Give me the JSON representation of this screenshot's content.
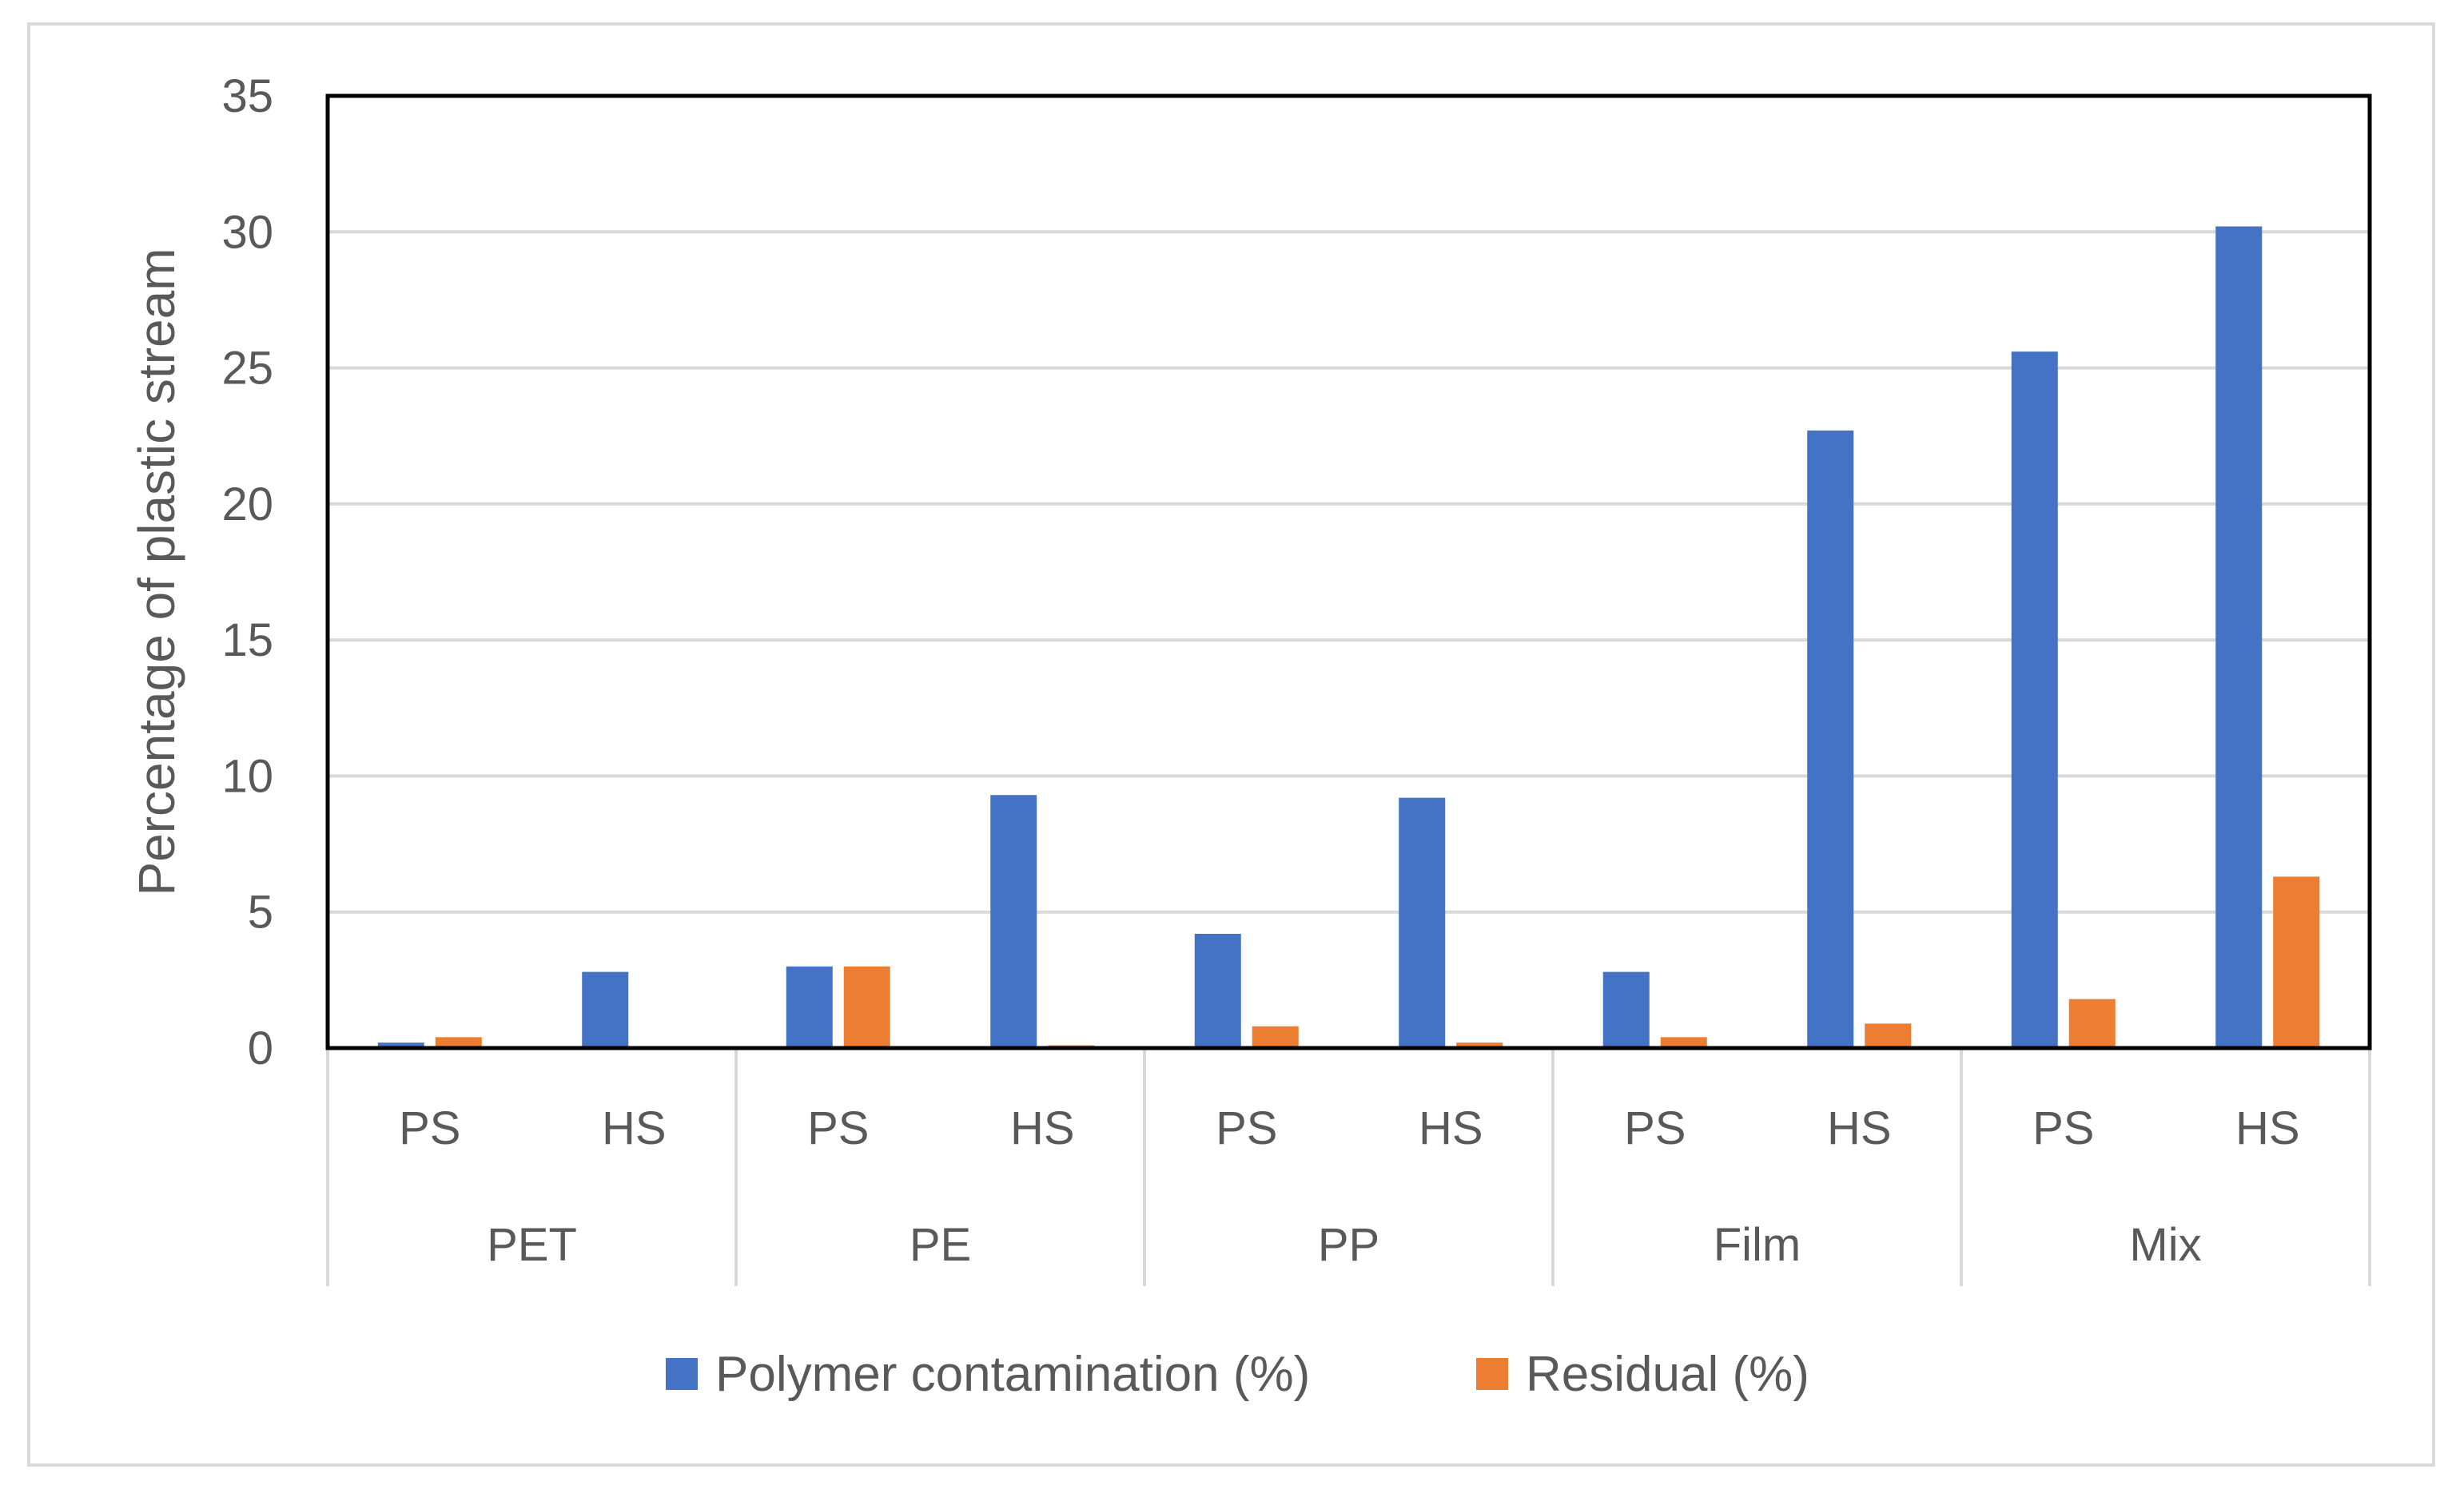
{
  "chart_data": {
    "type": "bar",
    "groups": [
      "PET",
      "PE",
      "PP",
      "Film",
      "Mix"
    ],
    "subcategories": [
      "PS",
      "HS"
    ],
    "categories": [
      "PS",
      "HS",
      "PS",
      "HS",
      "PS",
      "HS",
      "PS",
      "HS",
      "PS",
      "HS"
    ],
    "series": [
      {
        "name": "Polymer contamination (%)",
        "color": "#4472c4",
        "values": [
          0.2,
          2.8,
          3.0,
          9.3,
          4.2,
          9.2,
          2.8,
          22.7,
          25.6,
          30.2
        ]
      },
      {
        "name": "Residual (%)",
        "color": "#ed7d31",
        "values": [
          0.4,
          0.0,
          3.0,
          0.1,
          0.8,
          0.2,
          0.4,
          0.9,
          1.8,
          6.3
        ]
      }
    ],
    "title": "",
    "xlabel": "",
    "ylabel": "Percentage of plastic stream",
    "ylim": [
      0,
      35
    ],
    "yticks": [
      0,
      5,
      10,
      15,
      20,
      25,
      30,
      35
    ],
    "grid": true,
    "legend_position": "bottom"
  }
}
